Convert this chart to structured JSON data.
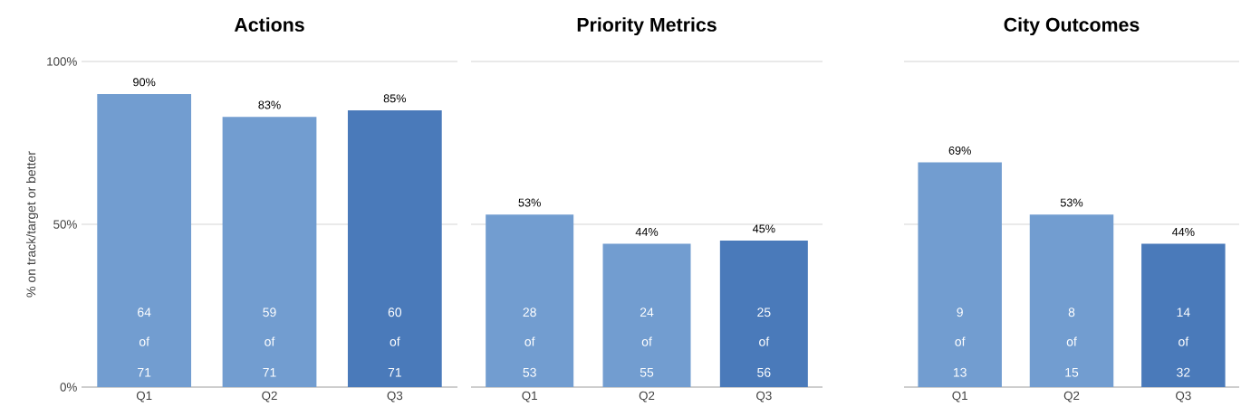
{
  "chart_data": [
    {
      "type": "bar",
      "title": "Actions",
      "ylabel": "% on track/target or better",
      "categories": [
        "Q1",
        "Q2",
        "Q3"
      ],
      "values": [
        90,
        83,
        85
      ],
      "colors": [
        "#729dd0",
        "#729dd0",
        "#4a7aba"
      ],
      "value_labels": [
        "90%",
        "83%",
        "85%"
      ],
      "ylim": [
        0,
        100
      ],
      "yticks": [
        {
          "value": 0,
          "label": "0%"
        },
        {
          "value": 50,
          "label": "50%"
        },
        {
          "value": 100,
          "label": "100%"
        }
      ],
      "grid": "y",
      "annotations": [
        "64",
        "of",
        "71",
        "59",
        "of",
        "71",
        "60",
        "of",
        "71"
      ]
    },
    {
      "type": "bar",
      "title": "Priority Metrics",
      "categories": [
        "Q1",
        "Q2",
        "Q3"
      ],
      "values": [
        53,
        44,
        45
      ],
      "colors": [
        "#729dd0",
        "#729dd0",
        "#4a7aba"
      ],
      "value_labels": [
        "53%",
        "44%",
        "45%"
      ],
      "ylim": [
        0,
        100
      ],
      "yticks": [
        {
          "value": 0,
          "label": null
        },
        {
          "value": 50,
          "label": null
        },
        {
          "value": 100,
          "label": null
        }
      ],
      "grid": "y",
      "tick_labels": "x",
      "annotations": [
        "28",
        "of",
        "53",
        "24",
        "of",
        "55",
        "25",
        "of",
        "56"
      ]
    },
    {
      "type": "bar",
      "title": "City Outcomes",
      "categories": [
        "Q1",
        "Q2",
        "Q3"
      ],
      "values": [
        69,
        53,
        44
      ],
      "colors": [
        "#729dd0",
        "#729dd0",
        "#4a7aba"
      ],
      "value_labels": [
        "69%",
        "53%",
        "44%"
      ],
      "ylim": [
        0,
        100
      ],
      "yticks": [
        {
          "value": 0,
          "label": null
        },
        {
          "value": 50,
          "label": null
        },
        {
          "value": 100,
          "label": null
        }
      ],
      "grid": "y",
      "tick_labels": "x",
      "annotations": [
        "9",
        "of",
        "13",
        "8",
        "of",
        "15",
        "14",
        "of",
        "32"
      ]
    }
  ]
}
